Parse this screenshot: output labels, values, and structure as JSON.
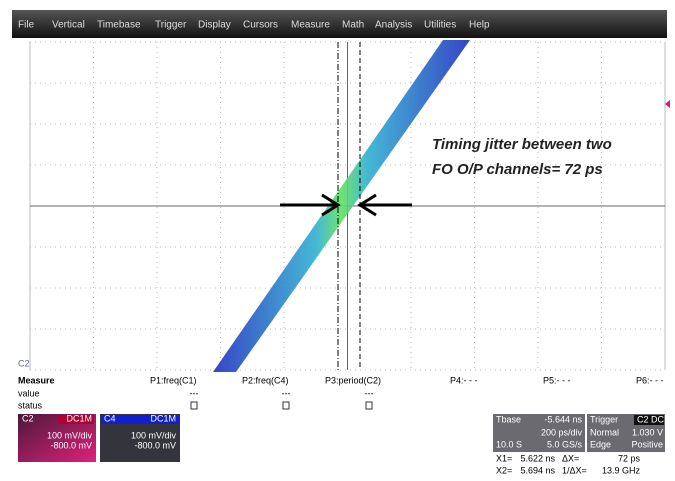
{
  "menu": [
    "File",
    "Vertical",
    "Timebase",
    "Trigger",
    "Display",
    "Cursors",
    "Measure",
    "Math",
    "Analysis",
    "Utilities",
    "Help"
  ],
  "annotation": [
    "Timing jitter between two",
    "FO O/P channels= 72 ps"
  ],
  "measure": {
    "title": "Measure",
    "row_labels": [
      "value",
      "status"
    ],
    "params": [
      "P1:freq(C1)",
      "P2:freq(C4)",
      "P3:period(C2)",
      "P4:- - -",
      "P5:- - -",
      "P6:- - -"
    ],
    "values": [
      "---",
      "---",
      "---"
    ]
  },
  "channels": [
    {
      "name": "C2",
      "coupling": "DC1M",
      "scale": "100 mV/div",
      "offset": "-800.0 mV"
    },
    {
      "name": "C4",
      "coupling": "DC1M",
      "scale": "100 mV/div",
      "offset": "-800.0 mV"
    }
  ],
  "timebase": {
    "label": "Tbase",
    "delay": "-5.644 ns",
    "scale": "200 ps/div",
    "samples": "10.0 S",
    "rate": "5.0 GS/s"
  },
  "trigger": {
    "label": "Trigger",
    "source": "C2",
    "coupling": "DC",
    "mode": "Normal",
    "level": "1.030 V",
    "type": "Edge",
    "slope": "Positive"
  },
  "cursors": {
    "x1_label": "X1=",
    "x1": "5.622 ns",
    "dx_label": "ΔX=",
    "dx": "72 ps",
    "x2_label": "X2=",
    "x2": "5.694 ns",
    "inv_label": "1/ΔX=",
    "inv": "13.9 GHz"
  }
}
